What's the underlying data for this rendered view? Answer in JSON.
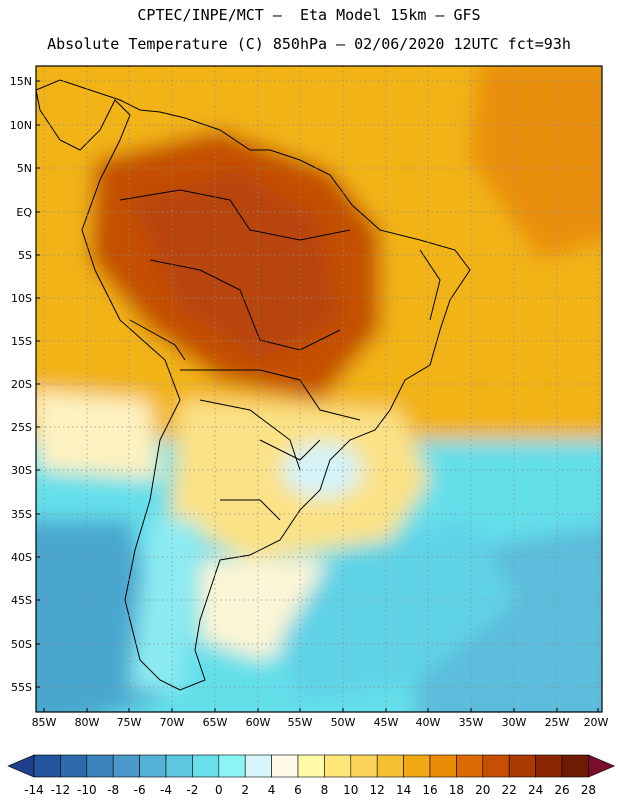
{
  "title_line1": "CPTEC/INPE/MCT –  Eta Model 15km – GFS",
  "title_line2": "Absolute Temperature (C) 850hPa – 02/06/2020 12UTC fct=93h",
  "lat_labels": [
    "15N",
    "10N",
    "5N",
    "EQ",
    "5S",
    "10S",
    "15S",
    "20S",
    "25S",
    "30S",
    "35S",
    "40S",
    "45S",
    "50S",
    "55S"
  ],
  "lon_labels": [
    "85W",
    "80W",
    "75W",
    "70W",
    "65W",
    "60W",
    "55W",
    "50W",
    "45W",
    "40W",
    "35W",
    "30W",
    "25W",
    "20W"
  ],
  "colorbar": {
    "ticks": [
      "-14",
      "-12",
      "-10",
      "-8",
      "-6",
      "-4",
      "-2",
      "0",
      "2",
      "4",
      "6",
      "8",
      "10",
      "12",
      "14",
      "16",
      "18",
      "20",
      "22",
      "24",
      "26",
      "28"
    ],
    "colors": [
      "#1f3e8c",
      "#24549c",
      "#2e6aac",
      "#3b82bb",
      "#4a99c9",
      "#56b1d6",
      "#5ec7e0",
      "#69dfea",
      "#8bf5f5",
      "#d6f6fb",
      "#fffbe8",
      "#fffaa6",
      "#fde77a",
      "#f9d458",
      "#f4c032",
      "#f0a915",
      "#e98b07",
      "#dc6a02",
      "#c65000",
      "#a93a00",
      "#8a2600",
      "#6f1a06",
      "#7a0e2a"
    ]
  }
}
